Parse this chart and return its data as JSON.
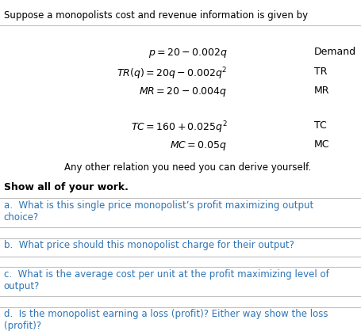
{
  "title": "Suppose a monopolists cost and revenue information is given by",
  "eq1": "$p = 20 - 0.002q$",
  "eq1_label": "Demand",
  "eq2": "$TR(q) = 20q - 0.002q^2$",
  "eq2_label": "TR",
  "eq3": "$MR = 20 - 0.004q$",
  "eq3_label": "MR",
  "eq4": "$TC = 160 + 0.025q^2$",
  "eq4_label": "TC",
  "eq5": "$MC = 0.05q$",
  "eq5_label": "MC",
  "note": "Any other relation you need you can derive yourself.",
  "show_work": "Show all of your work.",
  "qa": "a.  What is this single price monopolist’s profit maximizing output\nchoice?",
  "qb": "b.  What price should this monopolist charge for their output?",
  "qc": "c.  What is the average cost per unit at the profit maximizing level of\noutput?",
  "qd": "d.  Is the monopolist earning a loss (profit)? Either way show the loss\n(profit)?",
  "bg_color": "#ffffff",
  "text_color": "#000000",
  "title_color": "#000000",
  "question_color": "#2e74b5",
  "line_color": "#c0c0c0"
}
